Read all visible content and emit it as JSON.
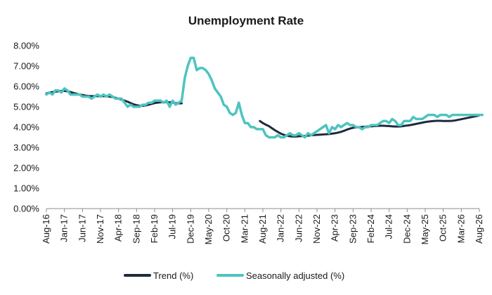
{
  "chart_data": {
    "type": "line",
    "title": "Unemployment Rate",
    "xlabel": "",
    "ylabel": "",
    "x_start": "Aug-16",
    "x_labels": [
      "Aug-16",
      "Jan-17",
      "Jun-17",
      "Nov-17",
      "Apr-18",
      "Sep-18",
      "Feb-19",
      "Jul-19",
      "Dec-19",
      "May-20",
      "Oct-20",
      "Mar-21",
      "Aug-21",
      "Jan-22",
      "Jun-22",
      "Nov-22",
      "Apr-23",
      "Sep-23",
      "Feb-24",
      "Jul-24",
      "Dec-24",
      "May-25",
      "Oct-25",
      "Mar-26",
      "Aug-26"
    ],
    "y_ticks": [
      "0.00%",
      "1.00%",
      "2.00%",
      "3.00%",
      "4.00%",
      "5.00%",
      "6.00%",
      "7.00%",
      "8.00%"
    ],
    "ylim": [
      0,
      8
    ],
    "grid": false,
    "legend_position": "bottom",
    "series": [
      {
        "name": "Trend (%)",
        "color": "#1f2a3d",
        "values": [
          5.65,
          5.7,
          5.72,
          5.74,
          5.76,
          5.78,
          5.78,
          5.76,
          5.72,
          5.68,
          5.64,
          5.6,
          5.58,
          5.55,
          5.53,
          5.52,
          5.52,
          5.52,
          5.52,
          5.52,
          5.52,
          5.5,
          5.48,
          5.44,
          5.4,
          5.35,
          5.3,
          5.25,
          5.18,
          5.12,
          5.08,
          5.05,
          5.05,
          5.07,
          5.1,
          5.14,
          5.18,
          5.2,
          5.22,
          5.23,
          5.23,
          5.22,
          5.2,
          5.18,
          5.17,
          5.17,
          null,
          null,
          null,
          null,
          null,
          null,
          null,
          null,
          null,
          null,
          null,
          null,
          null,
          null,
          null,
          null,
          null,
          null,
          null,
          null,
          null,
          null,
          null,
          null,
          null,
          4.3,
          4.2,
          4.12,
          4.05,
          3.95,
          3.85,
          3.76,
          3.68,
          3.62,
          3.58,
          3.55,
          3.54,
          3.54,
          3.55,
          3.56,
          3.57,
          3.58,
          3.6,
          3.61,
          3.62,
          3.63,
          3.64,
          3.65,
          3.66,
          3.68,
          3.7,
          3.73,
          3.77,
          3.82,
          3.88,
          3.93,
          3.97,
          3.99,
          4.0,
          4.01,
          4.02,
          4.03,
          4.04,
          4.05,
          4.06,
          4.07,
          4.07,
          4.06,
          4.05,
          4.04,
          4.03,
          4.03,
          4.04,
          4.06,
          4.08,
          4.1,
          4.13,
          4.16,
          4.19,
          4.22,
          4.25,
          4.27,
          4.29,
          4.3,
          4.31,
          4.31,
          4.3,
          4.3,
          4.3,
          4.31,
          4.33,
          4.36,
          4.39,
          4.42,
          4.45,
          4.48,
          4.51,
          4.54,
          4.58
        ]
      },
      {
        "name": "Seasonally adjusted (%)",
        "color": "#4dc4c0",
        "values": [
          5.6,
          5.7,
          5.6,
          5.8,
          5.8,
          5.7,
          5.9,
          5.8,
          5.6,
          5.6,
          5.6,
          5.6,
          5.5,
          5.5,
          5.5,
          5.4,
          5.5,
          5.6,
          5.5,
          5.6,
          5.5,
          5.6,
          5.5,
          5.4,
          5.4,
          5.4,
          5.2,
          5.0,
          5.1,
          5.0,
          5.0,
          5.0,
          5.1,
          5.1,
          5.2,
          5.2,
          5.3,
          5.3,
          5.3,
          5.2,
          5.3,
          5.0,
          5.3,
          5.1,
          5.2,
          5.3,
          6.4,
          7.0,
          7.4,
          7.4,
          6.8,
          6.9,
          6.9,
          6.8,
          6.6,
          6.3,
          5.9,
          5.7,
          5.5,
          5.1,
          5.0,
          4.7,
          4.6,
          4.7,
          5.2,
          4.6,
          4.2,
          4.2,
          4.0,
          4.0,
          3.9,
          3.9,
          3.9,
          3.6,
          3.5,
          3.5,
          3.5,
          3.6,
          3.5,
          3.5,
          3.6,
          3.7,
          3.6,
          3.6,
          3.7,
          3.6,
          3.5,
          3.7,
          3.6,
          3.7,
          3.8,
          3.9,
          4.0,
          4.1,
          3.7,
          4.0,
          3.9,
          4.1,
          4.0,
          4.1,
          4.2,
          4.1,
          4.1,
          4.0,
          4.0,
          3.9,
          4.0,
          4.0,
          4.1,
          4.1,
          4.1,
          4.2,
          4.3,
          4.3,
          4.2,
          4.4,
          4.3,
          4.1,
          4.1,
          4.3,
          4.3,
          4.3,
          4.5,
          4.4,
          4.4,
          4.4,
          4.5,
          4.6,
          4.6,
          4.6,
          4.5,
          4.6,
          4.6,
          4.6,
          4.5,
          4.6,
          4.6,
          4.6,
          4.6,
          4.6,
          4.6,
          4.6,
          4.6,
          4.6,
          4.6,
          4.6
        ]
      }
    ]
  }
}
